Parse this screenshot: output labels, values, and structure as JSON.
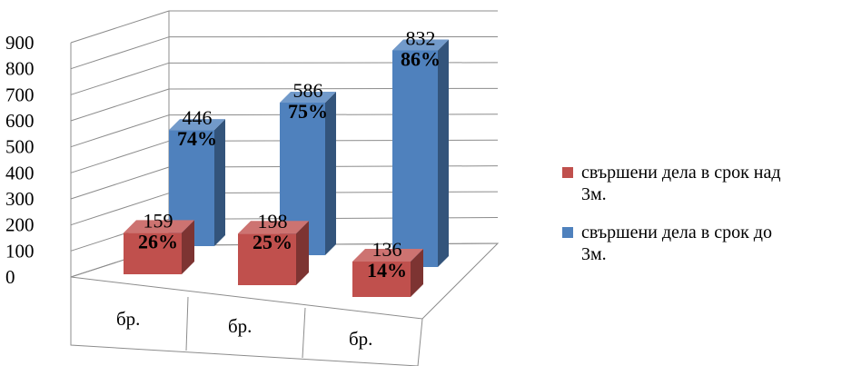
{
  "chart_data": {
    "type": "bar",
    "title": "",
    "xlabel": "",
    "ylabel": "",
    "categories": [
      "бр.",
      "бр.",
      "бр."
    ],
    "ylim": [
      0,
      900
    ],
    "yticks": [
      0,
      100,
      200,
      300,
      400,
      500,
      600,
      700,
      800,
      900
    ],
    "series": [
      {
        "name": "свършени дела в срок над 3м.",
        "color": "#c0504d",
        "values": [
          159,
          198,
          136
        ],
        "percent_labels": [
          "26%",
          "25%",
          "14%"
        ]
      },
      {
        "name": "свършени дела в срок до 3м.",
        "color": "#4f81bd",
        "values": [
          446,
          586,
          832
        ],
        "percent_labels": [
          "74%",
          "75%",
          "86%"
        ]
      }
    ],
    "grid": true,
    "legend": "right",
    "style": "3d-clustered-column"
  }
}
